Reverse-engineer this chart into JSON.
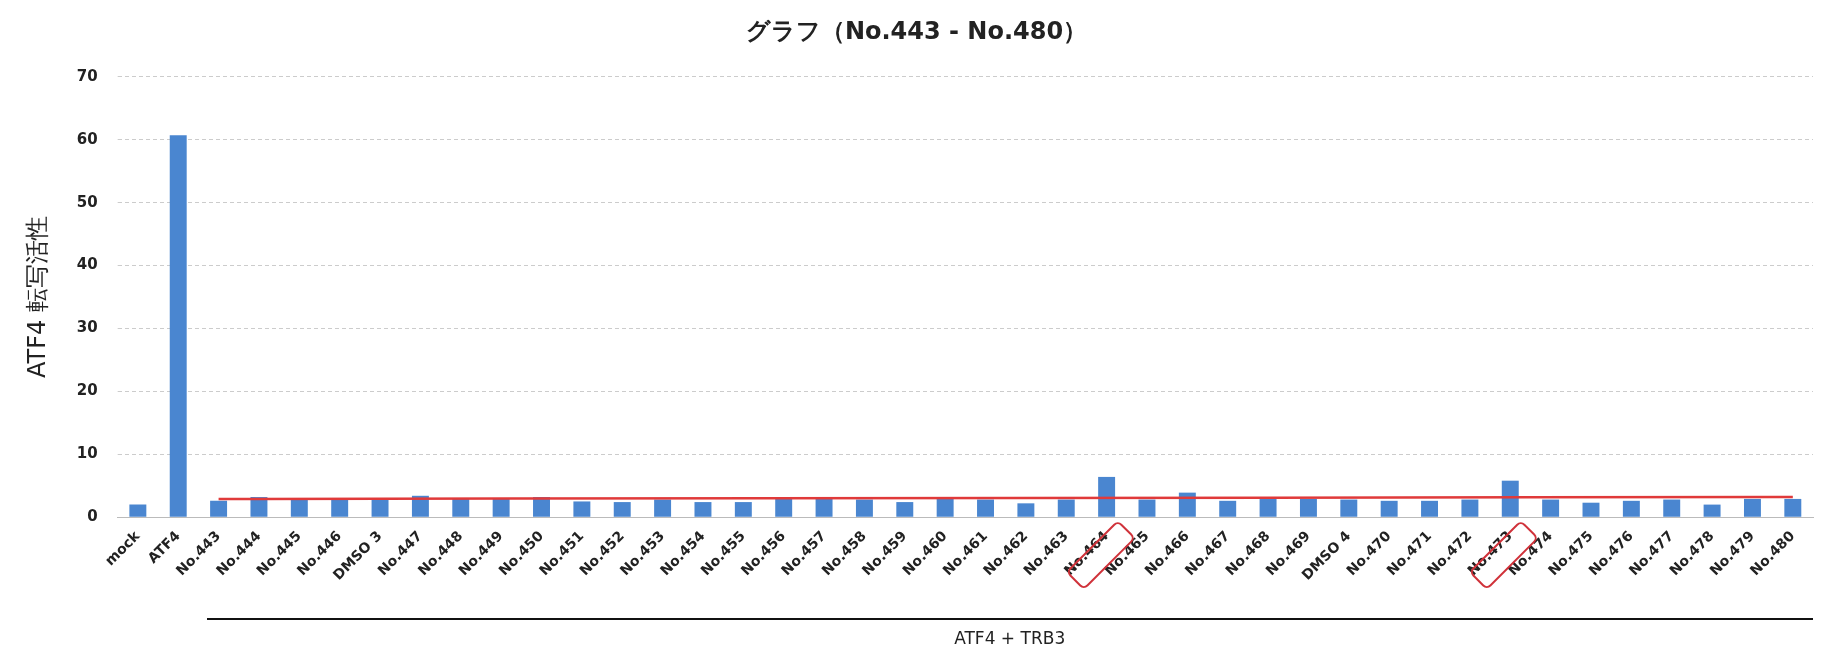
{
  "chart_data": {
    "type": "bar",
    "title": "グラフ（No.443 - No.480）",
    "ylabel": "ATF4 転写活性",
    "categories": [
      "mock",
      "ATF4",
      "No.443",
      "No.444",
      "No.445",
      "No.446",
      "DMSO 3",
      "No.447",
      "No.448",
      "No.449",
      "No.450",
      "No.451",
      "No.452",
      "No.453",
      "No.454",
      "No.455",
      "No.456",
      "No.457",
      "No.458",
      "No.459",
      "No.460",
      "No.461",
      "No.462",
      "No.463",
      "No.464",
      "No.465",
      "No.466",
      "No.467",
      "No.468",
      "No.469",
      "DMSO 4",
      "No.470",
      "No.471",
      "No.472",
      "No.473",
      "No.474",
      "No.475",
      "No.476",
      "No.477",
      "No.478",
      "No.479",
      "No.480"
    ],
    "series": [
      {
        "color": "#4a86d0",
        "values": [
          2.0,
          60.7,
          2.6,
          3.2,
          3.0,
          2.9,
          2.9,
          3.4,
          2.9,
          2.9,
          3.2,
          2.5,
          2.4,
          2.8,
          2.4,
          2.4,
          2.9,
          3.2,
          2.8,
          2.4,
          2.9,
          2.8,
          2.2,
          2.8,
          6.4,
          2.8,
          3.9,
          2.6,
          2.9,
          2.9,
          2.8,
          2.6,
          2.6,
          2.8,
          5.8,
          2.8,
          2.3,
          2.6,
          2.8,
          2.0,
          2.9,
          2.9
        ]
      },
      {
        "type": "line",
        "color": "#e03a3a",
        "values": [
          null,
          null,
          2.9,
          null,
          null,
          null,
          null,
          null,
          null,
          null,
          null,
          null,
          null,
          null,
          null,
          null,
          null,
          null,
          null,
          null,
          null,
          null,
          null,
          null,
          null,
          null,
          null,
          null,
          null,
          null,
          null,
          null,
          null,
          null,
          null,
          null,
          null,
          null,
          null,
          null,
          null,
          3.2
        ]
      }
    ],
    "ylim": [
      0,
      70
    ],
    "yticks": [
      0,
      10,
      20,
      30,
      40,
      50,
      60,
      70
    ],
    "grid": "y",
    "legend": false,
    "marker": "none",
    "annotations": [
      "ATF4 + TRB3"
    ]
  }
}
